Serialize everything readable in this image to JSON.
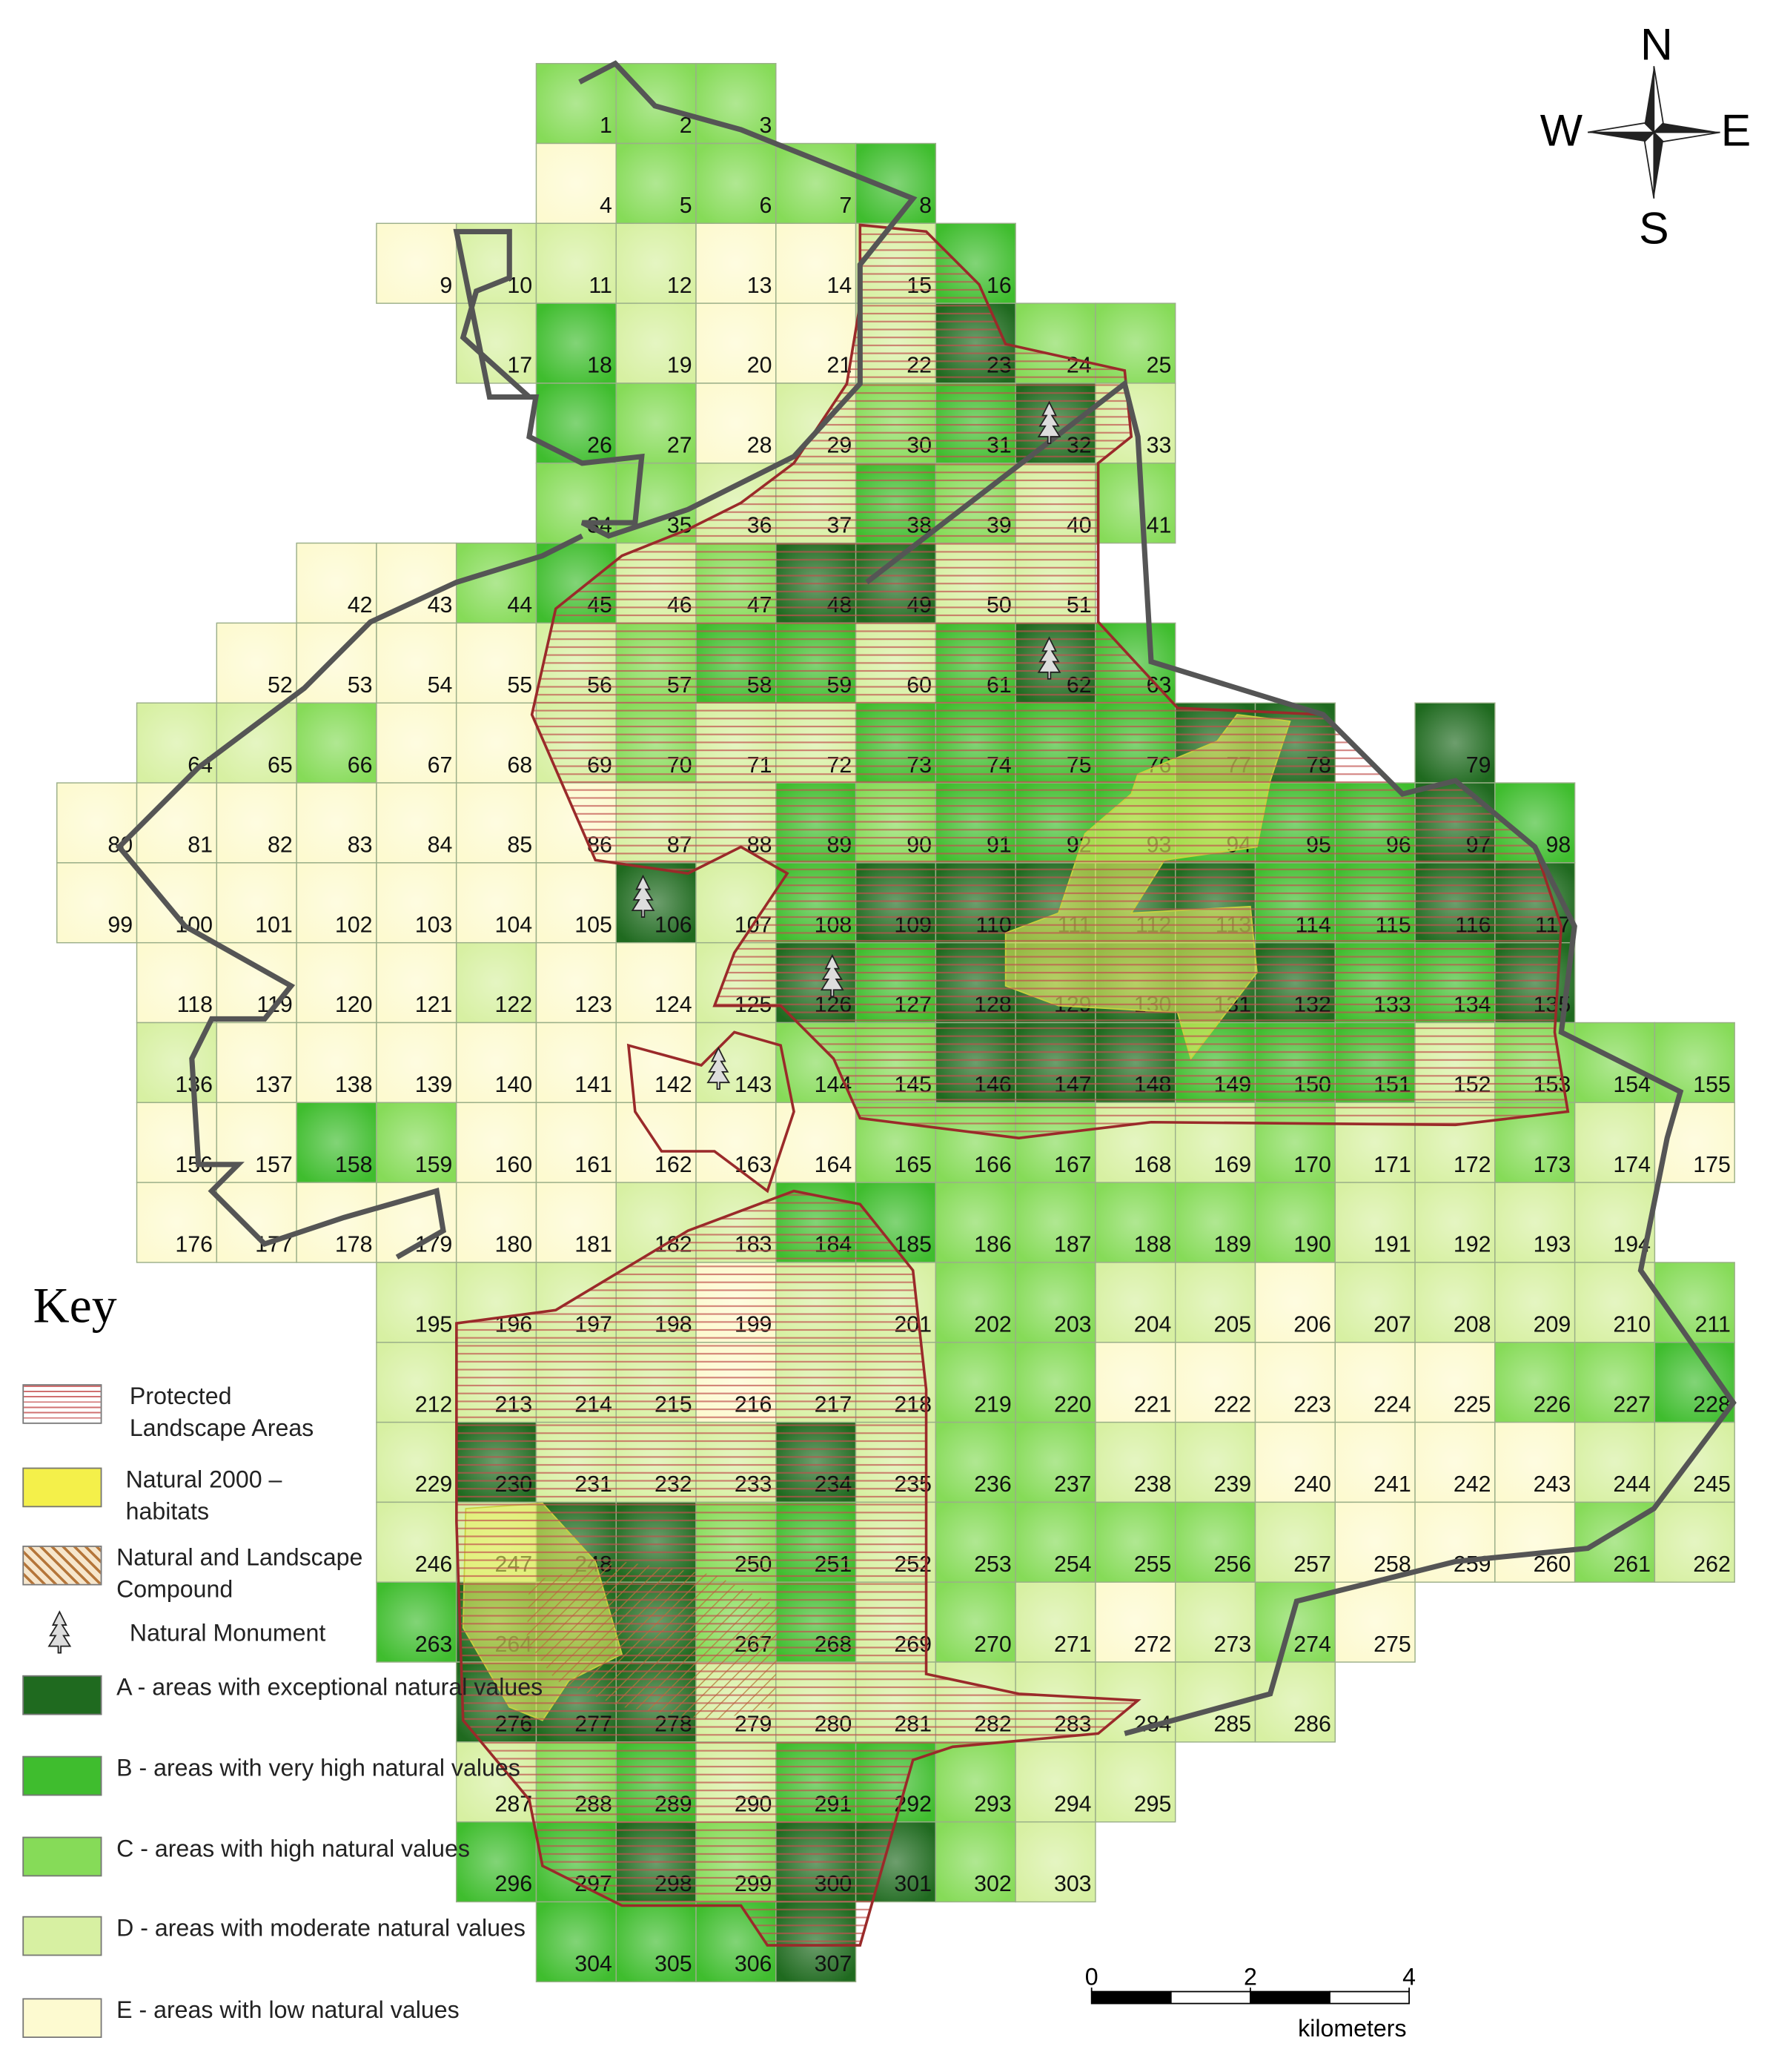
{
  "map": {
    "grid": {
      "rows": [
        {
          "labels": [
            1,
            2,
            3
          ],
          "classes": [
            "C",
            "C",
            "C"
          ]
        },
        {
          "labels": [
            4,
            5,
            6,
            7,
            8
          ],
          "classes": [
            "E",
            "C",
            "C",
            "C",
            "B"
          ]
        },
        {
          "labels": [
            9,
            10,
            11,
            12,
            13,
            14,
            15,
            16
          ],
          "classes": [
            "E",
            "D",
            "D",
            "D",
            "E",
            "E",
            "D",
            "B"
          ]
        },
        {
          "labels": [
            17,
            18,
            19,
            20,
            21,
            22,
            23,
            24,
            25
          ],
          "classes": [
            "D",
            "B",
            "D",
            "E",
            "E",
            "D",
            "A",
            "C",
            "C"
          ]
        },
        {
          "labels": [
            26,
            27,
            28,
            29,
            30,
            31,
            32,
            33
          ],
          "classes": [
            "B",
            "C",
            "E",
            "D",
            "C",
            "B",
            "A",
            "D"
          ]
        },
        {
          "labels": [
            34,
            35,
            36,
            37,
            38,
            39,
            40,
            41
          ],
          "classes": [
            "C",
            "C",
            "D",
            "D",
            "B",
            "C",
            "D",
            "C"
          ]
        },
        {
          "labels": [
            42,
            43,
            44,
            45,
            46,
            47,
            48,
            49,
            50,
            51
          ],
          "classes": [
            "E",
            "E",
            "C",
            "B",
            "D",
            "C",
            "A",
            "A",
            "D",
            "D"
          ]
        },
        {
          "labels": [
            52,
            53,
            54,
            55,
            56,
            57,
            58,
            59,
            60,
            61,
            62,
            63
          ],
          "classes": [
            "E",
            "E",
            "E",
            "E",
            "D",
            "C",
            "B",
            "B",
            "D",
            "B",
            "A",
            "B"
          ]
        },
        {
          "labels": [
            64,
            65,
            66,
            67,
            68,
            69,
            70,
            71,
            72,
            73,
            74,
            75,
            76,
            77,
            78,
            null,
            79
          ],
          "classes": [
            "D",
            "D",
            "C",
            "E",
            "E",
            "D",
            "C",
            "D",
            "D",
            "B",
            "B",
            "B",
            "B",
            "A",
            "A",
            null,
            "A"
          ]
        },
        {
          "labels": [
            80,
            81,
            82,
            83,
            84,
            85,
            86,
            87,
            88,
            89,
            90,
            91,
            92,
            93,
            94,
            95,
            96,
            97,
            98
          ],
          "classes": [
            "E",
            "E",
            "E",
            "E",
            "E",
            "E",
            "E",
            "D",
            "D",
            "B",
            "C",
            "B",
            "B",
            "B",
            "B",
            "B",
            "B",
            "A",
            "B"
          ]
        },
        {
          "labels": [
            99,
            100,
            101,
            102,
            103,
            104,
            105,
            106,
            107,
            108,
            109,
            110,
            111,
            112,
            113,
            114,
            115,
            116,
            117
          ],
          "classes": [
            "E",
            "E",
            "E",
            "E",
            "E",
            "E",
            "E",
            "A",
            "D",
            "B",
            "A",
            "A",
            "A",
            "A",
            "A",
            "B",
            "B",
            "A",
            "A"
          ]
        },
        {
          "labels": [
            118,
            119,
            120,
            121,
            122,
            123,
            124,
            125,
            126,
            127,
            128,
            129,
            130,
            131,
            132,
            133,
            134,
            135
          ],
          "classes": [
            "E",
            "E",
            "E",
            "E",
            "D",
            "E",
            "E",
            "D",
            "A",
            "B",
            "A",
            "A",
            "A",
            "A",
            "A",
            "B",
            "B",
            "A"
          ]
        },
        {
          "labels": [
            136,
            137,
            138,
            139,
            140,
            141,
            142,
            143,
            144,
            145,
            146,
            147,
            148,
            149,
            150,
            151,
            152,
            153,
            154,
            155
          ],
          "classes": [
            "D",
            "E",
            "E",
            "E",
            "E",
            "E",
            "E",
            "D",
            "C",
            "C",
            "A",
            "A",
            "A",
            "B",
            "B",
            "B",
            "D",
            "C",
            "C",
            "C"
          ]
        },
        {
          "labels": [
            156,
            157,
            158,
            159,
            160,
            161,
            162,
            163,
            164,
            165,
            166,
            167,
            168,
            169,
            170,
            171,
            172,
            173,
            174,
            175
          ],
          "classes": [
            "E",
            "E",
            "B",
            "C",
            "E",
            "E",
            "E",
            "E",
            "E",
            "C",
            "C",
            "C",
            "D",
            "D",
            "C",
            "D",
            "D",
            "C",
            "D",
            "E"
          ]
        },
        {
          "labels": [
            176,
            177,
            178,
            179,
            180,
            181,
            182,
            183,
            184,
            185,
            186,
            187,
            188,
            189,
            190,
            191,
            192,
            193,
            194
          ],
          "classes": [
            "E",
            "E",
            "E",
            "E",
            "E",
            "E",
            "D",
            "D",
            "B",
            "B",
            "C",
            "C",
            "C",
            "C",
            "C",
            "D",
            "D",
            "D",
            "D"
          ]
        },
        {
          "labels": [
            195,
            196,
            197,
            198,
            199,
            null,
            201,
            202,
            203,
            204,
            205,
            206,
            207,
            208,
            209,
            210,
            211
          ],
          "classes": [
            "D",
            "D",
            "D",
            "D",
            "E",
            "D",
            "D",
            "C",
            "C",
            "D",
            "D",
            "E",
            "D",
            "D",
            "D",
            "D",
            "C"
          ]
        },
        {
          "labels": [
            212,
            213,
            214,
            215,
            216,
            217,
            218,
            219,
            220,
            221,
            222,
            223,
            224,
            225,
            226,
            227,
            228
          ],
          "classes": [
            "D",
            "D",
            "D",
            "D",
            "E",
            "D",
            "D",
            "C",
            "C",
            "E",
            "E",
            "E",
            "E",
            "E",
            "C",
            "C",
            "B"
          ]
        },
        {
          "labels": [
            229,
            230,
            231,
            232,
            233,
            234,
            235,
            236,
            237,
            238,
            239,
            240,
            241,
            242,
            243,
            244,
            245
          ],
          "classes": [
            "D",
            "A",
            "D",
            "D",
            "D",
            "A",
            "D",
            "C",
            "C",
            "D",
            "D",
            "E",
            "E",
            "E",
            "E",
            "D",
            "D"
          ]
        },
        {
          "labels": [
            246,
            247,
            248,
            null,
            250,
            251,
            252,
            253,
            254,
            255,
            256,
            257,
            258,
            259,
            260,
            261,
            262
          ],
          "classes": [
            "D",
            "D",
            "A",
            "A",
            "C",
            "B",
            "D",
            "C",
            "C",
            "C",
            "C",
            "D",
            "E",
            "E",
            "E",
            "C",
            "D"
          ]
        },
        {
          "labels": [
            263,
            264,
            null,
            null,
            267,
            268,
            269,
            270,
            271,
            272,
            273,
            274,
            275
          ],
          "classes": [
            "B",
            "A",
            "A",
            "A",
            "C",
            "B",
            "D",
            "C",
            "D",
            "E",
            "D",
            "C",
            "E"
          ]
        },
        {
          "labels": [
            276,
            277,
            278,
            279,
            280,
            281,
            282,
            283,
            284,
            285,
            286
          ],
          "classes": [
            "A",
            "A",
            "A",
            "D",
            "D",
            "D",
            "D",
            "D",
            "D",
            "D",
            "D"
          ]
        },
        {
          "labels": [
            287,
            288,
            289,
            290,
            291,
            292,
            293,
            294,
            295
          ],
          "classes": [
            "D",
            "C",
            "B",
            "D",
            "B",
            "B",
            "C",
            "D",
            "D"
          ]
        },
        {
          "labels": [
            296,
            297,
            298,
            299,
            300,
            301,
            302,
            303
          ],
          "classes": [
            "B",
            "B",
            "A",
            "C",
            "A",
            "A",
            "C",
            "D"
          ]
        },
        {
          "labels": [
            304,
            305,
            306,
            307
          ],
          "classes": [
            "B",
            "B",
            "B",
            "A"
          ]
        }
      ]
    },
    "compass": {
      "north": "N",
      "west": "W",
      "east": "E",
      "south": "S"
    },
    "scale": {
      "ticks": [
        0,
        2,
        4
      ],
      "unit": "kilometers"
    },
    "key": {
      "title": "Key",
      "items": [
        {
          "label": "Protected Landscape Areas"
        },
        {
          "label": "Natural 2000 – habitats"
        },
        {
          "label": "Natural and Landscape Compound"
        },
        {
          "label": "Natural Monument"
        }
      ],
      "grades": {
        "A": {
          "label": "A - areas with exceptional natural values",
          "color": "#1f6a1f"
        },
        "B": {
          "label": "B - areas with very high natural values",
          "color": "#3fbd2e"
        },
        "C": {
          "label": "C - areas with high natural values",
          "color": "#86db58"
        },
        "D": {
          "label": "D - areas with moderate natural values",
          "color": "#d7f0a2"
        },
        "E": {
          "label": "E - areas with low natural values",
          "color": "#fdfad0"
        }
      }
    }
  }
}
